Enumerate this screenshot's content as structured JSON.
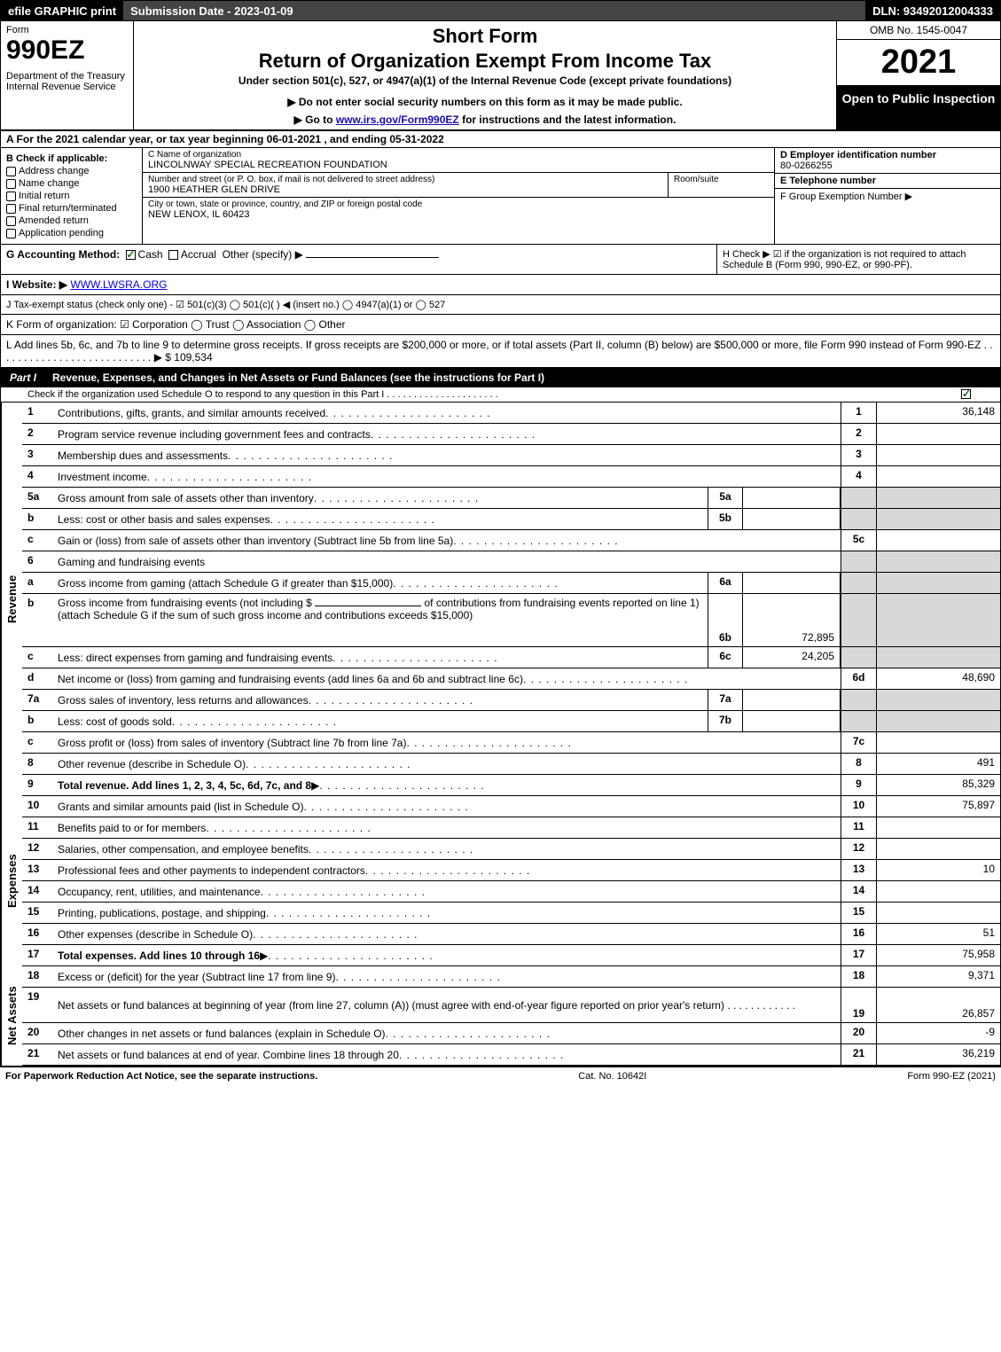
{
  "topbar": {
    "efile": "efile GRAPHIC print",
    "sub_label": "Submission Date - 2023-01-09",
    "dln": "DLN: 93492012004333"
  },
  "header": {
    "form": "Form",
    "form_num": "990EZ",
    "dept": "Department of the Treasury\nInternal Revenue Service",
    "short": "Short Form",
    "ret": "Return of Organization Exempt From Income Tax",
    "under": "Under section 501(c), 527, or 4947(a)(1) of the Internal Revenue Code (except private foundations)",
    "donot": "▶ Do not enter social security numbers on this form as it may be made public.",
    "goto_pre": "▶ Go to ",
    "goto_link": "www.irs.gov/Form990EZ",
    "goto_post": " for instructions and the latest information.",
    "omb": "OMB No. 1545-0047",
    "year": "2021",
    "blackbox": "Open to Public Inspection"
  },
  "line_a": "A  For the 2021 calendar year, or tax year beginning 06-01-2021 , and ending 05-31-2022",
  "sec_b": {
    "title": "B  Check if applicable:",
    "items": [
      "Address change",
      "Name change",
      "Initial return",
      "Final return/terminated",
      "Amended return",
      "Application pending"
    ]
  },
  "sec_c": {
    "name_lbl": "C Name of organization",
    "name": "LINCOLNWAY SPECIAL RECREATION FOUNDATION",
    "addr_lbl": "Number and street (or P. O. box, if mail is not delivered to street address)",
    "addr": "1900 HEATHER GLEN DRIVE",
    "room_lbl": "Room/suite",
    "city_lbl": "City or town, state or province, country, and ZIP or foreign postal code",
    "city": "NEW LENOX, IL  60423"
  },
  "sec_d": {
    "ein_lbl": "D Employer identification number",
    "ein": "80-0266255",
    "tel_lbl": "E Telephone number",
    "grp_lbl": "F Group Exemption Number  ▶"
  },
  "row_g": {
    "label": "G Accounting Method:",
    "cash": "Cash",
    "accrual": "Accrual",
    "other": "Other (specify) ▶"
  },
  "row_h": "H  Check ▶ ☑ if the organization is not required to attach Schedule B (Form 990, 990-EZ, or 990-PF).",
  "row_i": {
    "label": "I Website: ▶",
    "val": "WWW.LWSRA.ORG"
  },
  "row_j": "J Tax-exempt status (check only one) - ☑ 501(c)(3)  ◯ 501(c)(  ) ◀ (insert no.)  ◯ 4947(a)(1) or  ◯ 527",
  "row_k": "K Form of organization:  ☑ Corporation  ◯ Trust  ◯ Association  ◯ Other",
  "row_l": {
    "text": "L Add lines 5b, 6c, and 7b to line 9 to determine gross receipts. If gross receipts are $200,000 or more, or if total assets (Part II, column (B) below) are $500,000 or more, file Form 990 instead of Form 990-EZ  .  .  .  .  .  .  .  .  .  .  .  .  .  .  .  .  .  .  .  .  .  .  .  .  .  .  .  ▶ $",
    "val": "109,534"
  },
  "part_i": {
    "label": "Part I",
    "title": "Revenue, Expenses, and Changes in Net Assets or Fund Balances (see the instructions for Part I)",
    "sub": "Check if the organization used Schedule O to respond to any question in this Part I  .  .  .  .  .  .  .  .  .  .  .  .  .  .  .  .  .  .  .  .  ."
  },
  "revenue_lines": [
    {
      "n": "1",
      "d": "Contributions, gifts, grants, and similar amounts received",
      "r": "1",
      "v": "36,148"
    },
    {
      "n": "2",
      "d": "Program service revenue including government fees and contracts",
      "r": "2",
      "v": ""
    },
    {
      "n": "3",
      "d": "Membership dues and assessments",
      "r": "3",
      "v": ""
    },
    {
      "n": "4",
      "d": "Investment income",
      "r": "4",
      "v": ""
    }
  ],
  "line5": {
    "a": {
      "n": "5a",
      "d": "Gross amount from sale of assets other than inventory",
      "m": "5a",
      "mv": ""
    },
    "b": {
      "n": "b",
      "d": "Less: cost or other basis and sales expenses",
      "m": "5b",
      "mv": ""
    },
    "c": {
      "n": "c",
      "d": "Gain or (loss) from sale of assets other than inventory (Subtract line 5b from line 5a)",
      "r": "5c",
      "v": ""
    }
  },
  "line6": {
    "head": {
      "n": "6",
      "d": "Gaming and fundraising events"
    },
    "a": {
      "n": "a",
      "d": "Gross income from gaming (attach Schedule G if greater than $15,000)",
      "m": "6a",
      "mv": ""
    },
    "b": {
      "n": "b",
      "d1": "Gross income from fundraising events (not including $",
      "d2": "of contributions from fundraising events reported on line 1) (attach Schedule G if the sum of such gross income and contributions exceeds $15,000)",
      "m": "6b",
      "mv": "72,895"
    },
    "c": {
      "n": "c",
      "d": "Less: direct expenses from gaming and fundraising events",
      "m": "6c",
      "mv": "24,205"
    },
    "d": {
      "n": "d",
      "d": "Net income or (loss) from gaming and fundraising events (add lines 6a and 6b and subtract line 6c)",
      "r": "6d",
      "v": "48,690"
    }
  },
  "line7": {
    "a": {
      "n": "7a",
      "d": "Gross sales of inventory, less returns and allowances",
      "m": "7a",
      "mv": ""
    },
    "b": {
      "n": "b",
      "d": "Less: cost of goods sold",
      "m": "7b",
      "mv": ""
    },
    "c": {
      "n": "c",
      "d": "Gross profit or (loss) from sales of inventory (Subtract line 7b from line 7a)",
      "r": "7c",
      "v": ""
    }
  },
  "line8": {
    "n": "8",
    "d": "Other revenue (describe in Schedule O)",
    "r": "8",
    "v": "491"
  },
  "line9": {
    "n": "9",
    "d": "Total revenue. Add lines 1, 2, 3, 4, 5c, 6d, 7c, and 8",
    "r": "9",
    "v": "85,329"
  },
  "expense_lines": [
    {
      "n": "10",
      "d": "Grants and similar amounts paid (list in Schedule O)",
      "r": "10",
      "v": "75,897"
    },
    {
      "n": "11",
      "d": "Benefits paid to or for members",
      "r": "11",
      "v": ""
    },
    {
      "n": "12",
      "d": "Salaries, other compensation, and employee benefits",
      "r": "12",
      "v": ""
    },
    {
      "n": "13",
      "d": "Professional fees and other payments to independent contractors",
      "r": "13",
      "v": "10"
    },
    {
      "n": "14",
      "d": "Occupancy, rent, utilities, and maintenance",
      "r": "14",
      "v": ""
    },
    {
      "n": "15",
      "d": "Printing, publications, postage, and shipping",
      "r": "15",
      "v": ""
    },
    {
      "n": "16",
      "d": "Other expenses (describe in Schedule O)",
      "r": "16",
      "v": "51"
    },
    {
      "n": "17",
      "d": "Total expenses. Add lines 10 through 16",
      "r": "17",
      "v": "75,958",
      "bold": true
    }
  ],
  "net_lines": [
    {
      "n": "18",
      "d": "Excess or (deficit) for the year (Subtract line 17 from line 9)",
      "r": "18",
      "v": "9,371"
    },
    {
      "n": "19",
      "d": "Net assets or fund balances at beginning of year (from line 27, column (A)) (must agree with end-of-year figure reported on prior year's return)",
      "r": "19",
      "v": "26,857"
    },
    {
      "n": "20",
      "d": "Other changes in net assets or fund balances (explain in Schedule O)",
      "r": "20",
      "v": "-9"
    },
    {
      "n": "21",
      "d": "Net assets or fund balances at end of year. Combine lines 18 through 20",
      "r": "21",
      "v": "36,219"
    }
  ],
  "side_labels": {
    "rev": "Revenue",
    "exp": "Expenses",
    "net": "Net Assets"
  },
  "footer": {
    "left": "For Paperwork Reduction Act Notice, see the separate instructions.",
    "mid": "Cat. No. 10642I",
    "right": "Form 990-EZ (2021)"
  }
}
